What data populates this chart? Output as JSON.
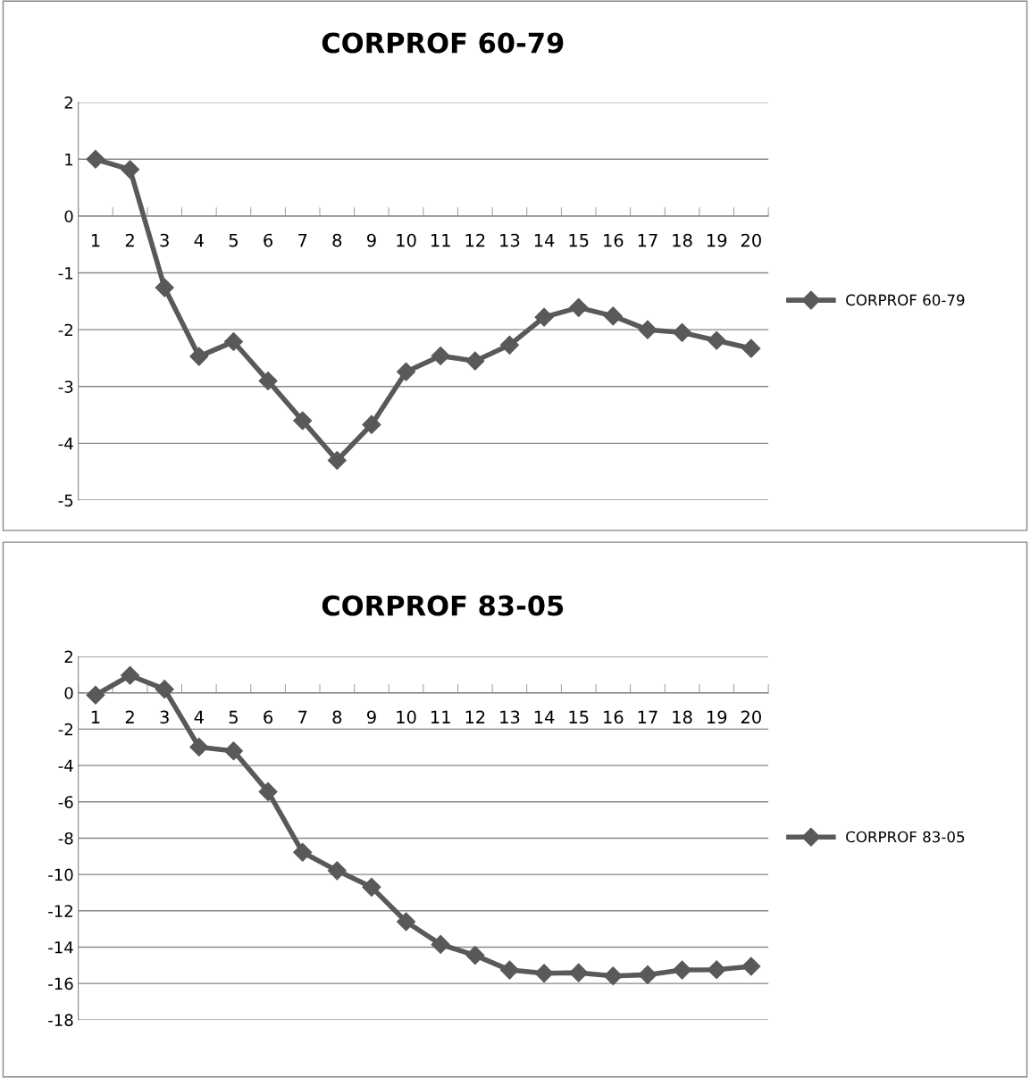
{
  "chart_data": [
    {
      "type": "line",
      "title": "CORPROF 60-79",
      "categories": [
        "1",
        "2",
        "3",
        "4",
        "5",
        "6",
        "7",
        "8",
        "9",
        "10",
        "11",
        "12",
        "13",
        "14",
        "15",
        "16",
        "17",
        "18",
        "19",
        "20"
      ],
      "series": [
        {
          "name": "CORPROF 60-79",
          "color": "#595959",
          "values": [
            1.0,
            0.82,
            -1.26,
            -2.47,
            -2.21,
            -2.9,
            -3.6,
            -4.3,
            -3.67,
            -2.74,
            -2.46,
            -2.55,
            -2.27,
            -1.78,
            -1.61,
            -1.76,
            -2.0,
            -2.05,
            -2.19,
            -2.33
          ]
        }
      ],
      "ylim": [
        -5,
        2
      ],
      "yticks": [
        -5,
        -4,
        -3,
        -2,
        -1,
        0,
        1,
        2
      ],
      "grid": "y",
      "legend": "right",
      "marker": "diamond",
      "line_style": "solid"
    },
    {
      "type": "line",
      "title": "CORPROF 83-05",
      "categories": [
        "1",
        "2",
        "3",
        "4",
        "5",
        "6",
        "7",
        "8",
        "9",
        "10",
        "11",
        "12",
        "13",
        "14",
        "15",
        "16",
        "17",
        "18",
        "19",
        "20"
      ],
      "series": [
        {
          "name": "CORPROF 83-05",
          "color": "#595959",
          "values": [
            -0.12,
            0.96,
            0.2,
            -2.99,
            -3.2,
            -5.44,
            -8.78,
            -9.79,
            -10.7,
            -12.6,
            -13.85,
            -14.45,
            -15.26,
            -15.44,
            -15.41,
            -15.59,
            -15.52,
            -15.26,
            -15.24,
            -15.06
          ]
        }
      ],
      "ylim": [
        -18,
        2
      ],
      "yticks": [
        -18,
        -16,
        -14,
        -12,
        -10,
        -8,
        -6,
        -4,
        -2,
        0,
        2
      ],
      "grid": "y",
      "legend": "right",
      "marker": "diamond",
      "line_style": "solid"
    }
  ]
}
